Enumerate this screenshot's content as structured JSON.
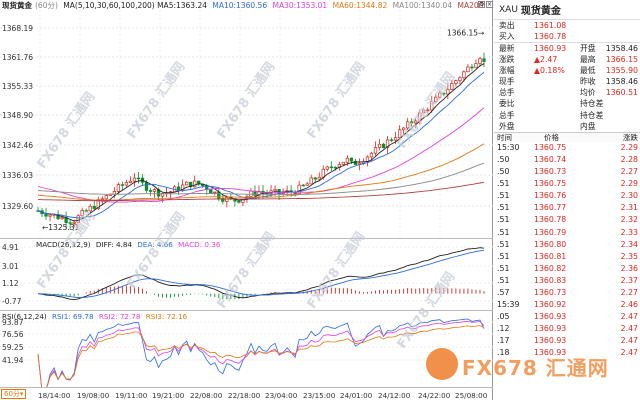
{
  "main_legend": {
    "name": "现货黄金",
    "period": "(60分)",
    "ma5": "MA(5,10,30,60,100,200) MA5:1363.24",
    "ma10": "MA10:1360.56",
    "ma30": "MA30:1353.01",
    "ma60": "MA60:1344.82",
    "ma100": "MA100:1340.04",
    "ma200": "MA200:",
    "colors": {
      "ma5": "#222222",
      "ma10": "#2b6de0",
      "ma30": "#e040e0",
      "ma60": "#e07a10",
      "ma100": "#888888",
      "ma200": "#b04040"
    }
  },
  "main_axis": {
    "ticks": [
      "1368.19",
      "1361.76",
      "1355.33",
      "1348.90",
      "1342.46",
      "1336.03",
      "1329.60"
    ],
    "high_marker": "1366.15",
    "low_marker": "1325.31"
  },
  "macd_legend": {
    "label": "MACD(26,12,9)",
    "diff": "DIFF: 4.84",
    "dea": "DEA: 4.66",
    "macd": "MACD: 0.36"
  },
  "macd_axis": {
    "ticks": [
      "4.91",
      "3.01",
      "1.12",
      "-0.77"
    ]
  },
  "rsi_legend": {
    "label": "RSI(6,12,24)",
    "rsi1": "RSI1: 69.78",
    "rsi2": "RSI2: 72.78",
    "rsi3": "RSI3: 72.16"
  },
  "rsi_axis": {
    "ticks": [
      "93.87",
      "76.56",
      "59.25",
      "41.94"
    ]
  },
  "time_axis": {
    "period_selector": "60分",
    "labels": [
      "18/14:00",
      "19/08:00",
      "19/11:00",
      "19/21:00",
      "22/08:00",
      "22/18:00",
      "23/04:00",
      "23/15:00",
      "24/01:00",
      "24/12:00",
      "24/22:00",
      "25/08:00"
    ]
  },
  "quote": {
    "symbol": "XAU",
    "title": "现货黄金",
    "rows": [
      {
        "l": "卖出",
        "v": "1361.08",
        "vc": "red",
        "l2": "",
        "v2": ""
      },
      {
        "l": "买入",
        "v": "1360.78",
        "vc": "red",
        "l2": "",
        "v2": ""
      },
      {
        "l": "最新",
        "v": "1360.93",
        "vc": "red",
        "l2": "开盘",
        "v2": "1358.46",
        "v2c": ""
      },
      {
        "l": "涨跌",
        "v": "▲2.47",
        "vc": "red",
        "l2": "最高",
        "v2": "1366.15",
        "v2c": "red"
      },
      {
        "l": "涨幅",
        "v": "▲0.18%",
        "vc": "red",
        "l2": "最低",
        "v2": "1355.90",
        "v2c": "red"
      },
      {
        "l": "现手",
        "v": "",
        "vc": "",
        "l2": "昨收",
        "v2": "1358.46",
        "v2c": ""
      },
      {
        "l": "总手",
        "v": "",
        "vc": "",
        "l2": "均价",
        "v2": "1360.51",
        "v2c": "red"
      },
      {
        "l": "委比",
        "v": "",
        "vc": "",
        "l2": "持仓差",
        "v2": "",
        "v2c": ""
      },
      {
        "l": "总手",
        "v": "",
        "vc": "",
        "l2": "持仓差",
        "v2": "",
        "v2c": ""
      },
      {
        "l": "外盘",
        "v": "",
        "vc": "",
        "l2": "内盘",
        "v2": "",
        "v2c": ""
      }
    ],
    "trades_header": {
      "time": "时间",
      "price": "价格",
      "chg": "涨跌"
    },
    "trades": [
      {
        "t": "15:30",
        "p": "1360.75",
        "c": "2.29"
      },
      {
        "t": ".50",
        "p": "1360.74",
        "c": "2.28"
      },
      {
        "t": ".50",
        "p": "1360.73",
        "c": "2.27"
      },
      {
        "t": ".51",
        "p": "1360.75",
        "c": "2.29"
      },
      {
        "t": ".51",
        "p": "1360.76",
        "c": "2.30"
      },
      {
        "t": ".51",
        "p": "1360.77",
        "c": "2.31"
      },
      {
        "t": ".51",
        "p": "1360.78",
        "c": "2.32"
      },
      {
        "t": ".51",
        "p": "1360.79",
        "c": "2.33"
      },
      {
        "t": ".51",
        "p": "1360.80",
        "c": "2.34"
      },
      {
        "t": ".51",
        "p": "1360.81",
        "c": "2.35"
      },
      {
        "t": ".51",
        "p": "1360.82",
        "c": "2.36"
      },
      {
        "t": ".51",
        "p": "1360.83",
        "c": "2.37"
      },
      {
        "t": ".57",
        "p": "1360.73",
        "c": "2.27"
      },
      {
        "t": "15:39",
        "p": "1360.92",
        "c": "2.46"
      },
      {
        "t": ".05",
        "p": "1360.93",
        "c": "2.47"
      },
      {
        "t": ".12",
        "p": "1360.93",
        "c": "2.47"
      },
      {
        "t": ".17",
        "p": "1360.93",
        "c": "2.47"
      },
      {
        "t": ".18",
        "p": "1360.93",
        "c": "2.47"
      }
    ]
  },
  "watermark_text": "FX678 汇通网",
  "brand_text": "FX678 汇通网"
}
